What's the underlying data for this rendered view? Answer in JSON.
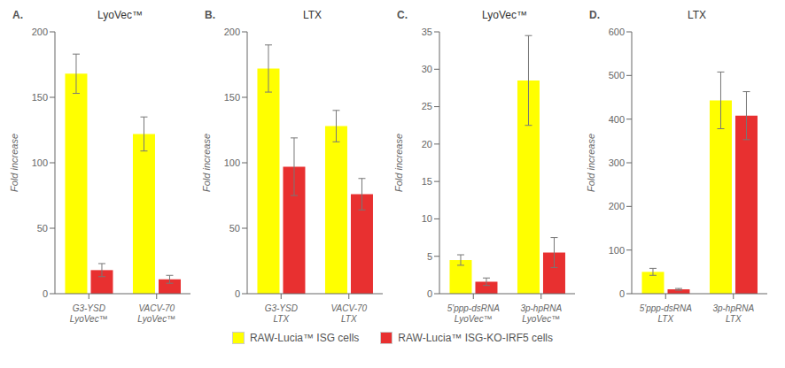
{
  "chart_data": [
    {
      "type": "bar",
      "title": "LyoVec™",
      "annotations": [
        "A."
      ],
      "y_label": "Fold increase",
      "categories": [
        "G3-YSD\nLyoVec™",
        "VACV-70\nLyoVec™"
      ],
      "series": [
        {
          "name": "RAW-Lucia™ ISG cells",
          "color": "#FFFF00",
          "values": [
            168,
            122
          ],
          "errors": [
            15,
            13
          ]
        },
        {
          "name": "RAW-Lucia™ ISG-KO-IRF5 cells",
          "color": "#E83030",
          "values": [
            18,
            11
          ],
          "errors": [
            5,
            3
          ]
        }
      ],
      "ylim": [
        0,
        200
      ],
      "yticks": [
        0,
        50,
        100,
        150,
        200
      ],
      "grid": false,
      "legend": "bottom"
    },
    {
      "type": "bar",
      "title": "LTX",
      "annotations": [
        "B."
      ],
      "y_label": "Fold increase",
      "categories": [
        "G3-YSD\nLTX",
        "VACV-70\nLTX"
      ],
      "series": [
        {
          "name": "RAW-Lucia™ ISG cells",
          "color": "#FFFF00",
          "values": [
            172,
            128
          ],
          "errors": [
            18,
            12
          ]
        },
        {
          "name": "RAW-Lucia™ ISG-KO-IRF5 cells",
          "color": "#E83030",
          "values": [
            97,
            76
          ],
          "errors": [
            22,
            12
          ]
        }
      ],
      "ylim": [
        0,
        200
      ],
      "yticks": [
        0,
        50,
        100,
        150,
        200
      ],
      "grid": false,
      "legend": "bottom"
    },
    {
      "type": "bar",
      "title": "LyoVec™",
      "annotations": [
        "C."
      ],
      "y_label": "Fold increase",
      "categories": [
        "5'ppp-dsRNA\nLyoVec™",
        "3p-hpRNA\nLyoVec™"
      ],
      "series": [
        {
          "name": "RAW-Lucia™ ISG cells",
          "color": "#FFFF00",
          "values": [
            4.5,
            28.5
          ],
          "errors": [
            0.7,
            6
          ]
        },
        {
          "name": "RAW-Lucia™ ISG-KO-IRF5 cells",
          "color": "#E83030",
          "values": [
            1.6,
            5.5
          ],
          "errors": [
            0.5,
            2
          ]
        }
      ],
      "ylim": [
        0,
        35
      ],
      "yticks": [
        0,
        5,
        10,
        15,
        20,
        25,
        30,
        35
      ],
      "grid": false,
      "legend": "bottom"
    },
    {
      "type": "bar",
      "title": "LTX",
      "annotations": [
        "D."
      ],
      "y_label": "Fold increase",
      "categories": [
        "5'ppp-dsRNA\nLTX",
        "3p-hpRNA\nLTX"
      ],
      "series": [
        {
          "name": "RAW-Lucia™ ISG cells",
          "color": "#FFFF00",
          "values": [
            50,
            443
          ],
          "errors": [
            8,
            65
          ]
        },
        {
          "name": "RAW-Lucia™ ISG-KO-IRF5 cells",
          "color": "#E83030",
          "values": [
            10,
            408
          ],
          "errors": [
            2,
            55
          ]
        }
      ],
      "ylim": [
        0,
        600
      ],
      "yticks": [
        0,
        100,
        200,
        300,
        400,
        500,
        600
      ],
      "grid": false,
      "legend": "bottom"
    }
  ]
}
